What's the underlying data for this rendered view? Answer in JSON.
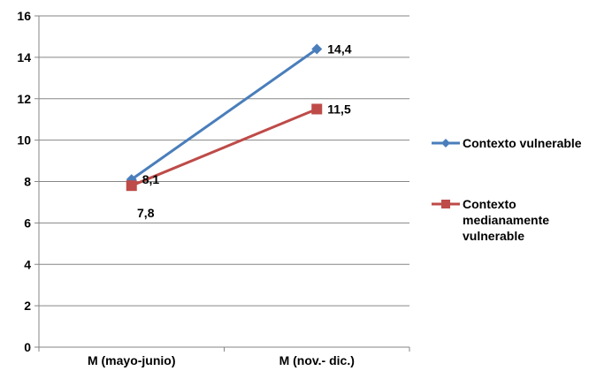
{
  "chart_data": {
    "type": "line",
    "title": "",
    "xlabel": "",
    "ylabel": "",
    "categories": [
      "M (mayo-junio)",
      "M (nov.- dic.)"
    ],
    "ylim": [
      0,
      16
    ],
    "yticks": [
      0,
      2,
      4,
      6,
      8,
      10,
      12,
      14,
      16
    ],
    "ytick_labels": [
      "0",
      "2",
      "4",
      "6",
      "8",
      "10",
      "12",
      "14",
      "16"
    ],
    "grid": true,
    "legend_position": "right",
    "series": [
      {
        "name": "Contexto vulnerable",
        "legend_lines": [
          "Contexto vulnerable"
        ],
        "values": [
          8.1,
          14.4
        ],
        "labels": [
          "8,1",
          "14,4"
        ],
        "color": "#4a7ebb",
        "marker": "diamond"
      },
      {
        "name": "Contexto medianamente vulnerable",
        "legend_lines": [
          "Contexto",
          "medianamente",
          "vulnerable"
        ],
        "values": [
          7.8,
          11.5
        ],
        "labels": [
          "7,8",
          "11,5"
        ],
        "color": "#be4b48",
        "marker": "square"
      }
    ]
  }
}
